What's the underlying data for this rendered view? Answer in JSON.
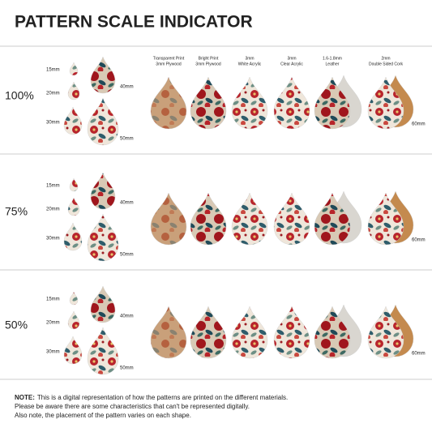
{
  "title": "PATTERN SCALE INDICATOR",
  "materials": [
    {
      "line1": "Transparent Print",
      "line2": "3mm Plywood"
    },
    {
      "line1": "Bright Print",
      "line2": "3mm Plywood"
    },
    {
      "line1": "3mm",
      "line2": "White Acrylic"
    },
    {
      "line1": "3mm",
      "line2": "Clear Acrylic"
    },
    {
      "line1": "1.6-1.8mm",
      "line2": "Leather"
    },
    {
      "line1": "2mm",
      "line2": "Double Sided Cork"
    }
  ],
  "rows": [
    {
      "scale": "100%",
      "sizes": [
        "15mm",
        "20mm",
        "30mm",
        "40mm",
        "50mm"
      ],
      "size_right": "60mm"
    },
    {
      "scale": "75%",
      "sizes": [
        "15mm",
        "20mm",
        "30mm",
        "40mm",
        "50mm"
      ],
      "size_right": "60mm"
    },
    {
      "scale": "50%",
      "sizes": [
        "15mm",
        "20mm",
        "30mm",
        "40mm",
        "50mm"
      ],
      "size_right": "60mm"
    }
  ],
  "note": {
    "label": "NOTE:",
    "lines": [
      "This is a digital representation of how the patterns are printed on the different materials.",
      "Please be aware there are some characteristics that can't be represented digitally.",
      "Also note, the placement of the pattern varies on each shape."
    ]
  }
}
